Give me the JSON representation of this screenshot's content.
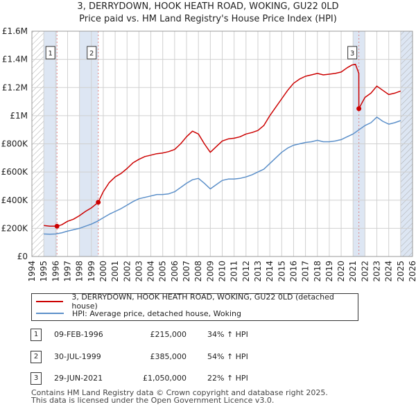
{
  "title_line1": "3, DERRYDOWN, HOOK HEATH ROAD, WOKING, GU22 0LD",
  "title_line2": "Price paid vs. HM Land Registry's House Price Index (HPI)",
  "colors": {
    "property": "#cc0000",
    "hpi": "#5b8fc9",
    "shade": "#dde6f3",
    "grid": "#d0d0d0",
    "marker_line": "#e08080"
  },
  "chart_data": {
    "type": "line",
    "x_range": [
      1994,
      2026
    ],
    "ylim": [
      0,
      1600000
    ],
    "y_ticks": [
      {
        "value": 0,
        "label": "£0"
      },
      {
        "value": 200000,
        "label": "£200K"
      },
      {
        "value": 400000,
        "label": "£400K"
      },
      {
        "value": 600000,
        "label": "£600K"
      },
      {
        "value": 800000,
        "label": "£800K"
      },
      {
        "value": 1000000,
        "label": "£1M"
      },
      {
        "value": 1200000,
        "label": "£1.2M"
      },
      {
        "value": 1400000,
        "label": "£1.4M"
      },
      {
        "value": 1600000,
        "label": "£1.6M"
      }
    ],
    "x_ticks": [
      "1994",
      "1995",
      "1996",
      "1997",
      "1998",
      "1999",
      "2000",
      "2001",
      "2002",
      "2003",
      "2004",
      "2005",
      "2006",
      "2007",
      "2008",
      "2009",
      "2010",
      "2011",
      "2012",
      "2013",
      "2014",
      "2015",
      "2016",
      "2017",
      "2018",
      "2019",
      "2020",
      "2021",
      "2022",
      "2023",
      "2024",
      "2025",
      "2026"
    ],
    "shaded_ranges": [
      [
        1995.0,
        1996.11
      ],
      [
        1998.0,
        1999.58
      ],
      [
        2021.0,
        2022.0
      ],
      [
        2025.0,
        2026.0
      ]
    ],
    "hatched_ranges": [
      [
        1994.0,
        1995.0
      ],
      [
        2025.0,
        2026.0
      ]
    ],
    "series": [
      {
        "name": "3, DERRYDOWN, HOOK HEATH ROAD, WOKING, GU22 0LD (detached house)",
        "color": "#cc0000",
        "x": [
          1995.0,
          1995.5,
          1996.11,
          1996.5,
          1997.0,
          1997.5,
          1998.0,
          1998.5,
          1999.0,
          1999.58,
          2000.0,
          2000.5,
          2001.0,
          2001.5,
          2002.0,
          2002.5,
          2003.0,
          2003.5,
          2004.0,
          2004.5,
          2005.0,
          2005.5,
          2006.0,
          2006.5,
          2007.0,
          2007.5,
          2008.0,
          2008.5,
          2009.0,
          2009.5,
          2010.0,
          2010.5,
          2011.0,
          2011.5,
          2012.0,
          2012.5,
          2013.0,
          2013.5,
          2014.0,
          2014.5,
          2015.0,
          2015.5,
          2016.0,
          2016.5,
          2017.0,
          2017.5,
          2018.0,
          2018.5,
          2019.0,
          2019.5,
          2020.0,
          2020.5,
          2020.9,
          2021.2,
          2021.48,
          2021.49,
          2022.0,
          2022.5,
          2023.0,
          2023.5,
          2024.0,
          2024.5,
          2025.0
        ],
        "values": [
          220000,
          215000,
          215000,
          225000,
          250000,
          265000,
          290000,
          320000,
          345000,
          385000,
          460000,
          525000,
          565000,
          590000,
          625000,
          665000,
          690000,
          710000,
          720000,
          730000,
          735000,
          745000,
          760000,
          800000,
          850000,
          890000,
          870000,
          800000,
          740000,
          780000,
          820000,
          835000,
          840000,
          850000,
          870000,
          880000,
          895000,
          930000,
          1000000,
          1060000,
          1120000,
          1180000,
          1230000,
          1260000,
          1280000,
          1290000,
          1300000,
          1290000,
          1295000,
          1300000,
          1310000,
          1340000,
          1360000,
          1365000,
          1300000,
          1050000,
          1130000,
          1160000,
          1210000,
          1180000,
          1150000,
          1160000,
          1175000
        ]
      },
      {
        "name": "HPI: Average price, detached house, Woking",
        "color": "#5b8fc9",
        "x": [
          1995.0,
          1995.5,
          1996.0,
          1996.5,
          1997.0,
          1997.5,
          1998.0,
          1998.5,
          1999.0,
          1999.5,
          2000.0,
          2000.5,
          2001.0,
          2001.5,
          2002.0,
          2002.5,
          2003.0,
          2003.5,
          2004.0,
          2004.5,
          2005.0,
          2005.5,
          2006.0,
          2006.5,
          2007.0,
          2007.5,
          2008.0,
          2008.5,
          2009.0,
          2009.5,
          2010.0,
          2010.5,
          2011.0,
          2011.5,
          2012.0,
          2012.5,
          2013.0,
          2013.5,
          2014.0,
          2014.5,
          2015.0,
          2015.5,
          2016.0,
          2016.5,
          2017.0,
          2017.5,
          2018.0,
          2018.5,
          2019.0,
          2019.5,
          2020.0,
          2020.5,
          2021.0,
          2021.5,
          2022.0,
          2022.5,
          2023.0,
          2023.5,
          2024.0,
          2024.5,
          2025.0
        ],
        "values": [
          160000,
          158000,
          160000,
          168000,
          180000,
          190000,
          200000,
          215000,
          230000,
          250000,
          275000,
          300000,
          320000,
          340000,
          365000,
          390000,
          410000,
          420000,
          430000,
          440000,
          440000,
          445000,
          460000,
          490000,
          520000,
          545000,
          555000,
          520000,
          480000,
          510000,
          540000,
          550000,
          550000,
          555000,
          565000,
          580000,
          600000,
          620000,
          660000,
          700000,
          740000,
          770000,
          790000,
          800000,
          810000,
          815000,
          825000,
          815000,
          815000,
          820000,
          830000,
          850000,
          870000,
          900000,
          930000,
          950000,
          990000,
          960000,
          940000,
          950000,
          965000
        ]
      }
    ],
    "sales": [
      {
        "label": "1",
        "x": 1996.11,
        "value": 215000
      },
      {
        "label": "2",
        "x": 1999.58,
        "value": 385000
      },
      {
        "label": "3",
        "x": 2021.49,
        "value": 1050000
      }
    ]
  },
  "legend": {
    "property": "3, DERRYDOWN, HOOK HEATH ROAD, WOKING, GU22 0LD (detached house)",
    "hpi": "HPI: Average price, detached house, Woking"
  },
  "transactions": [
    {
      "label": "1",
      "date": "09-FEB-1996",
      "price": "£215,000",
      "hpi": "34% ↑ HPI"
    },
    {
      "label": "2",
      "date": "30-JUL-1999",
      "price": "£385,000",
      "hpi": "54% ↑ HPI"
    },
    {
      "label": "3",
      "date": "29-JUN-2021",
      "price": "£1,050,000",
      "hpi": "22% ↑ HPI"
    }
  ],
  "footer_line1": "Contains HM Land Registry data © Crown copyright and database right 2025.",
  "footer_line2": "This data is licensed under the Open Government Licence v3.0."
}
